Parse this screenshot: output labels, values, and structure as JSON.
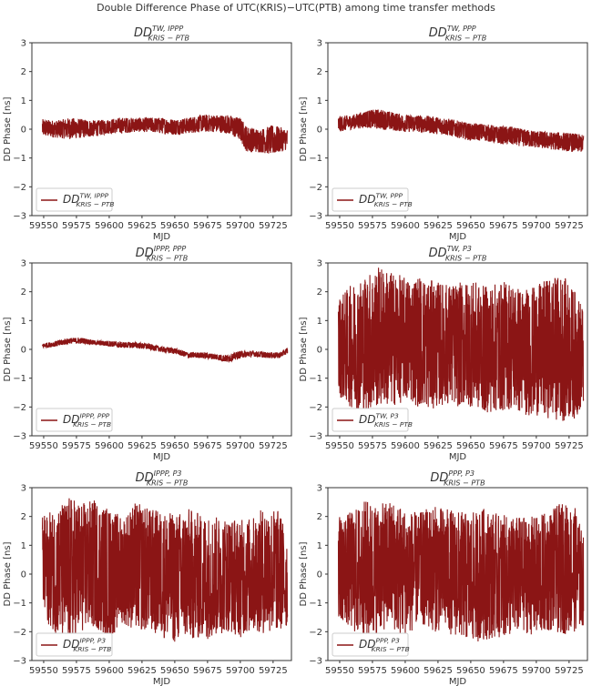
{
  "figure_title": "Double Difference Phase of UTC(KRIS)−UTC(PTB) among time transfer methods",
  "line_color": "#8b1515",
  "chart_data": [
    {
      "type": "line",
      "title": {
        "main": "DD",
        "sup": "TW, IPPP",
        "sub": "KRIS − PTB"
      },
      "legend": {
        "main": "DD",
        "sup": "TW, IPPP",
        "sub": "KRIS − PTB"
      },
      "legend_position": "lower-left",
      "xlabel": "MJD",
      "ylabel": "DD Phase [ns]",
      "xlim": [
        59541,
        59739
      ],
      "ylim": [
        -3,
        3
      ],
      "xticks": [
        59550,
        59575,
        59600,
        59625,
        59650,
        59675,
        59700,
        59725
      ],
      "yticks": [
        -3,
        -2,
        -1,
        0,
        1,
        2,
        3
      ],
      "x": [
        59549,
        59560,
        59570,
        59580,
        59590,
        59600,
        59610,
        59620,
        59630,
        59640,
        59650,
        59660,
        59670,
        59680,
        59690,
        59700,
        59705,
        59715,
        59725,
        59736
      ],
      "upper": [
        0.35,
        0.3,
        0.4,
        0.35,
        0.3,
        0.35,
        0.4,
        0.4,
        0.4,
        0.4,
        0.35,
        0.4,
        0.5,
        0.5,
        0.5,
        0.4,
        0.1,
        0.0,
        0.15,
        0.0
      ],
      "lower": [
        -0.25,
        -0.3,
        -0.35,
        -0.3,
        -0.25,
        -0.15,
        -0.15,
        -0.1,
        -0.1,
        -0.15,
        -0.2,
        -0.15,
        -0.1,
        -0.1,
        -0.15,
        -0.4,
        -0.8,
        -0.8,
        -0.9,
        -0.7
      ]
    },
    {
      "type": "line",
      "title": {
        "main": "DD",
        "sup": "TW, PPP",
        "sub": "KRIS − PTB"
      },
      "legend": {
        "main": "DD",
        "sup": "TW, PPP",
        "sub": "KRIS − PTB"
      },
      "legend_position": "lower-left",
      "xlabel": "MJD",
      "ylabel": "DD Phase [ns]",
      "xlim": [
        59541,
        59739
      ],
      "ylim": [
        -3,
        3
      ],
      "xticks": [
        59550,
        59575,
        59600,
        59625,
        59650,
        59675,
        59700,
        59725
      ],
      "yticks": [
        -3,
        -2,
        -1,
        0,
        1,
        2,
        3
      ],
      "x": [
        59549,
        59560,
        59570,
        59580,
        59590,
        59600,
        59610,
        59620,
        59630,
        59640,
        59650,
        59660,
        59670,
        59680,
        59690,
        59700,
        59710,
        59720,
        59730,
        59736
      ],
      "upper": [
        0.45,
        0.5,
        0.65,
        0.7,
        0.6,
        0.5,
        0.5,
        0.45,
        0.4,
        0.3,
        0.2,
        0.2,
        0.1,
        0.1,
        0.0,
        -0.05,
        -0.1,
        -0.1,
        -0.15,
        -0.2
      ],
      "lower": [
        -0.1,
        0.0,
        0.05,
        0.0,
        -0.05,
        -0.1,
        -0.1,
        -0.15,
        -0.2,
        -0.3,
        -0.4,
        -0.4,
        -0.5,
        -0.55,
        -0.6,
        -0.65,
        -0.7,
        -0.75,
        -0.8,
        -0.8
      ]
    },
    {
      "type": "line",
      "title": {
        "main": "DD",
        "sup": "IPPP, PPP",
        "sub": "KRIS − PTB"
      },
      "legend": {
        "main": "DD",
        "sup": "IPPP, PPP",
        "sub": "KRIS − PTB"
      },
      "legend_position": "lower-left",
      "xlabel": "MJD",
      "ylabel": "DD Phase [ns]",
      "xlim": [
        59541,
        59739
      ],
      "ylim": [
        -3,
        3
      ],
      "xticks": [
        59550,
        59575,
        59600,
        59625,
        59650,
        59675,
        59700,
        59725
      ],
      "yticks": [
        -3,
        -2,
        -1,
        0,
        1,
        2,
        3
      ],
      "x": [
        59549,
        59560,
        59570,
        59580,
        59590,
        59600,
        59610,
        59620,
        59630,
        59640,
        59650,
        59660,
        59670,
        59680,
        59690,
        59700,
        59710,
        59720,
        59730,
        59736
      ],
      "upper": [
        0.2,
        0.3,
        0.4,
        0.4,
        0.3,
        0.3,
        0.25,
        0.25,
        0.2,
        0.1,
        0.05,
        -0.1,
        -0.1,
        -0.15,
        -0.2,
        -0.05,
        -0.05,
        -0.1,
        -0.1,
        0.05
      ],
      "lower": [
        0.05,
        0.1,
        0.2,
        0.2,
        0.15,
        0.1,
        0.05,
        0.05,
        0.0,
        -0.1,
        -0.15,
        -0.3,
        -0.3,
        -0.35,
        -0.45,
        -0.3,
        -0.25,
        -0.3,
        -0.3,
        -0.15
      ]
    },
    {
      "type": "line",
      "title": {
        "main": "DD",
        "sup": "TW, P3",
        "sub": "KRIS − PTB"
      },
      "legend": {
        "main": "DD",
        "sup": "TW, P3",
        "sub": "KRIS − PTB"
      },
      "legend_position": "lower-left",
      "xlabel": "MJD",
      "ylabel": "DD Phase [ns]",
      "xlim": [
        59541,
        59739
      ],
      "ylim": [
        -3,
        3
      ],
      "xticks": [
        59550,
        59575,
        59600,
        59625,
        59650,
        59675,
        59700,
        59725
      ],
      "yticks": [
        -3,
        -2,
        -1,
        0,
        1,
        2,
        3
      ],
      "x": [
        59549,
        59560,
        59570,
        59580,
        59590,
        59600,
        59610,
        59620,
        59630,
        59640,
        59650,
        59660,
        59670,
        59680,
        59690,
        59700,
        59710,
        59720,
        59730,
        59736
      ],
      "upper": [
        1.8,
        2.3,
        2.6,
        2.9,
        2.7,
        2.5,
        2.6,
        2.4,
        2.3,
        2.3,
        2.4,
        2.2,
        2.3,
        2.4,
        2.1,
        2.2,
        2.5,
        2.6,
        2.0,
        1.5
      ],
      "lower": [
        -1.6,
        -2.1,
        -2.2,
        -2.0,
        -2.0,
        -1.8,
        -2.0,
        -2.1,
        -1.9,
        -2.0,
        -2.0,
        -2.2,
        -2.2,
        -2.1,
        -2.3,
        -2.3,
        -2.4,
        -2.5,
        -2.4,
        -2.0
      ]
    },
    {
      "type": "line",
      "title": {
        "main": "DD",
        "sup": "IPPP, P3",
        "sub": "KRIS − PTB"
      },
      "legend": {
        "main": "DD",
        "sup": "IPPP, P3",
        "sub": "KRIS − PTB"
      },
      "legend_position": "lower-left",
      "xlabel": "MJD",
      "ylabel": "DD Phase [ns]",
      "xlim": [
        59541,
        59739
      ],
      "ylim": [
        -3,
        3
      ],
      "xticks": [
        59550,
        59575,
        59600,
        59625,
        59650,
        59675,
        59700,
        59725
      ],
      "yticks": [
        -3,
        -2,
        -1,
        0,
        1,
        2,
        3
      ],
      "x": [
        59549,
        59560,
        59570,
        59580,
        59590,
        59600,
        59610,
        59620,
        59630,
        59640,
        59650,
        59660,
        59670,
        59680,
        59690,
        59700,
        59710,
        59720,
        59730,
        59736
      ],
      "upper": [
        2.0,
        2.3,
        2.7,
        2.5,
        2.6,
        2.3,
        2.0,
        2.5,
        2.3,
        2.2,
        2.1,
        2.3,
        2.1,
        2.0,
        2.0,
        1.9,
        2.0,
        2.4,
        2.2,
        1.3
      ],
      "lower": [
        -1.5,
        -2.1,
        -2.6,
        -2.0,
        -1.9,
        -2.3,
        -1.7,
        -2.0,
        -2.0,
        -2.2,
        -2.4,
        -2.3,
        -2.3,
        -2.2,
        -2.0,
        -2.2,
        -2.0,
        -2.1,
        -2.0,
        -1.9
      ]
    },
    {
      "type": "line",
      "title": {
        "main": "DD",
        "sup": "PPP, P3",
        "sub": "KRIS − PTB"
      },
      "legend": {
        "main": "DD",
        "sup": "PPP, P3",
        "sub": "KRIS − PTB"
      },
      "legend_position": "lower-left",
      "xlabel": "MJD",
      "ylabel": "DD Phase [ns]",
      "xlim": [
        59541,
        59739
      ],
      "ylim": [
        -3,
        3
      ],
      "xticks": [
        59550,
        59575,
        59600,
        59625,
        59650,
        59675,
        59700,
        59725
      ],
      "yticks": [
        -3,
        -2,
        -1,
        0,
        1,
        2,
        3
      ],
      "x": [
        59549,
        59560,
        59570,
        59580,
        59590,
        59600,
        59610,
        59620,
        59630,
        59640,
        59650,
        59660,
        59670,
        59680,
        59690,
        59700,
        59710,
        59720,
        59730,
        59736
      ],
      "upper": [
        2.0,
        2.2,
        2.6,
        2.4,
        2.6,
        2.3,
        2.1,
        2.4,
        2.3,
        2.2,
        2.1,
        2.3,
        2.1,
        2.0,
        2.0,
        2.0,
        2.2,
        2.5,
        2.3,
        1.3
      ],
      "lower": [
        -1.5,
        -2.0,
        -2.4,
        -2.0,
        -1.9,
        -2.3,
        -1.7,
        -2.0,
        -2.0,
        -2.2,
        -2.4,
        -2.3,
        -2.2,
        -2.2,
        -2.0,
        -2.2,
        -2.0,
        -2.1,
        -2.0,
        -1.8
      ]
    }
  ]
}
